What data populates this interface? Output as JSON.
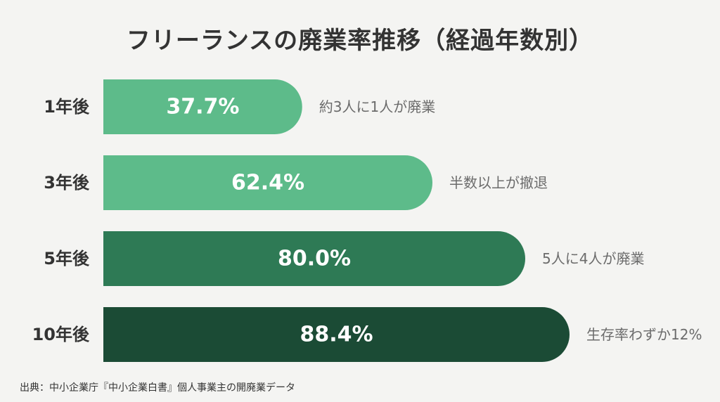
{
  "title": "フリーランスの廃業率推移（経過年数別）",
  "source": "出典：中小企業庁『中小企業白書』個人事業主の開廃業データ",
  "chart_data": {
    "type": "bar",
    "orientation": "horizontal",
    "categories": [
      "1年後",
      "3年後",
      "5年後",
      "10年後"
    ],
    "values": [
      37.7,
      62.4,
      80.0,
      88.4
    ],
    "value_labels": [
      "37.7%",
      "62.4%",
      "80.0%",
      "88.4%"
    ],
    "annotations": [
      "約3人に1人が廃業",
      "半数以上が撤退",
      "5人に4人が廃業",
      "生存率わずか12%"
    ],
    "colors": [
      "#5dbb8a",
      "#5dbb8a",
      "#2e7a55",
      "#1b4b35"
    ],
    "xlabel": "",
    "ylabel": "",
    "grid": false,
    "legend": "none"
  }
}
